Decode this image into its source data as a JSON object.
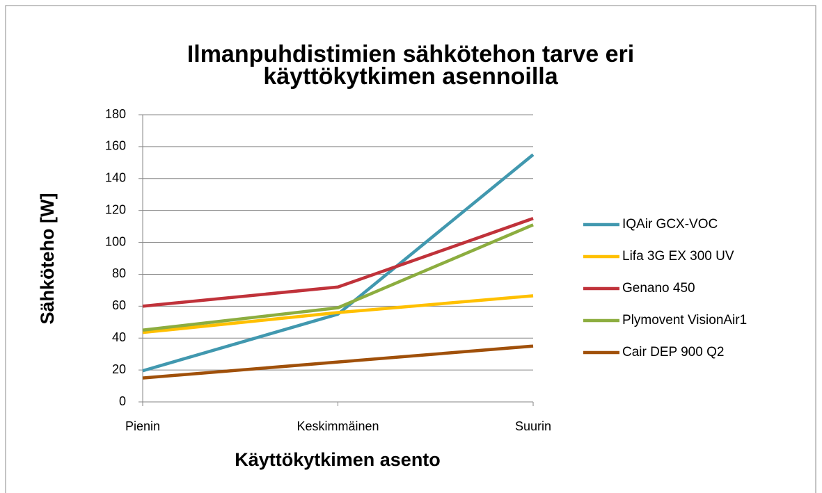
{
  "chart_data": {
    "type": "line",
    "title": [
      "Ilmanpuhdistimien sähkötehon tarve eri",
      "käyttökytkimen asennoilla"
    ],
    "x_label": "Käyttökytkimen asento",
    "y_label": "Sähköteho [W]",
    "categories": [
      "Pienin",
      "Keskimmäinen",
      "Suurin"
    ],
    "series": [
      {
        "name": "IQAir GCX-VOC",
        "color": "#4198af",
        "values": [
          19.5,
          55,
          155
        ]
      },
      {
        "name": "Lifa 3G EX 300 UV",
        "color": "#ffc000",
        "values": [
          43.5,
          56,
          66.5
        ]
      },
      {
        "name": "Genano 450",
        "color": "#c0323a",
        "values": [
          60,
          72,
          115
        ]
      },
      {
        "name": "Plymovent VisionAir1",
        "color": "#8cad3f",
        "values": [
          45,
          59,
          111
        ]
      },
      {
        "name": "Cair DEP 900 Q2",
        "color": "#a0500a",
        "values": [
          15,
          25,
          35
        ]
      }
    ],
    "ylim": [
      0,
      180
    ],
    "yticks": [
      0,
      20,
      40,
      60,
      80,
      100,
      120,
      140,
      160,
      180
    ],
    "grid": true,
    "legend": "right"
  }
}
